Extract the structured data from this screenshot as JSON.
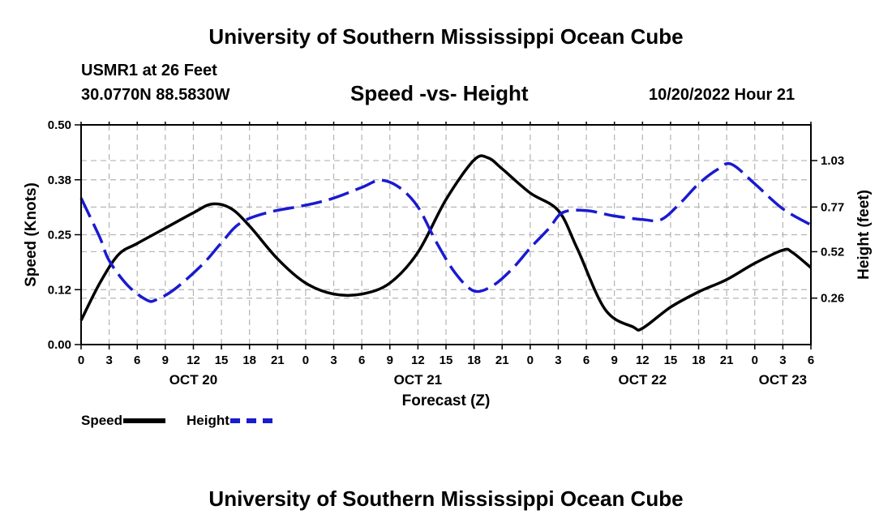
{
  "page": {
    "title_top": "University of Southern Mississippi Ocean Cube",
    "title_bottom": "University of Southern Mississippi Ocean Cube",
    "station_name": "USMR1 at 26 Feet",
    "station_coords": "30.0770N  88.5830W",
    "subtitle": "Speed -vs- Height",
    "run_time": "10/20/2022 Hour 21"
  },
  "legend": {
    "speed_label": "Speed",
    "height_label": "Height"
  },
  "colors": {
    "speed": "#000000",
    "height": "#1a1ad0",
    "grid": "#b4b4b4"
  },
  "chart_data": {
    "type": "line",
    "title": "Speed -vs- Height",
    "xlabel": "Forecast (Z)",
    "ylabel": "Speed (Knots)",
    "y2label": "Height (feet)",
    "x_range_hours": [
      0,
      78
    ],
    "ylim": [
      0,
      0.5
    ],
    "y2lim": [
      0,
      1.23
    ],
    "grid": true,
    "y_ticks": [
      {
        "value": 0.0,
        "label": "0.00"
      },
      {
        "value": 0.125,
        "label": "0.12"
      },
      {
        "value": 0.25,
        "label": "0.25"
      },
      {
        "value": 0.375,
        "label": "0.38"
      },
      {
        "value": 0.5,
        "label": "0.50"
      }
    ],
    "y2_ticks": [
      {
        "value": 0.26,
        "label": "0.26"
      },
      {
        "value": 0.52,
        "label": "0.52"
      },
      {
        "value": 0.77,
        "label": "0.77"
      },
      {
        "value": 1.03,
        "label": "1.03"
      }
    ],
    "x_ticks": [
      {
        "hour": 0,
        "label": "0"
      },
      {
        "hour": 3,
        "label": "3"
      },
      {
        "hour": 6,
        "label": "6"
      },
      {
        "hour": 9,
        "label": "9"
      },
      {
        "hour": 12,
        "label": "12"
      },
      {
        "hour": 15,
        "label": "15"
      },
      {
        "hour": 18,
        "label": "18"
      },
      {
        "hour": 21,
        "label": "21"
      },
      {
        "hour": 24,
        "label": "0"
      },
      {
        "hour": 27,
        "label": "3"
      },
      {
        "hour": 30,
        "label": "6"
      },
      {
        "hour": 33,
        "label": "9"
      },
      {
        "hour": 36,
        "label": "12"
      },
      {
        "hour": 39,
        "label": "15"
      },
      {
        "hour": 42,
        "label": "18"
      },
      {
        "hour": 45,
        "label": "21"
      },
      {
        "hour": 48,
        "label": "0"
      },
      {
        "hour": 51,
        "label": "3"
      },
      {
        "hour": 54,
        "label": "6"
      },
      {
        "hour": 57,
        "label": "9"
      },
      {
        "hour": 60,
        "label": "12"
      },
      {
        "hour": 63,
        "label": "15"
      },
      {
        "hour": 66,
        "label": "18"
      },
      {
        "hour": 69,
        "label": "21"
      },
      {
        "hour": 72,
        "label": "0"
      },
      {
        "hour": 75,
        "label": "3"
      },
      {
        "hour": 78,
        "label": "6"
      }
    ],
    "date_labels": [
      {
        "hour": 12,
        "label": "OCT 20"
      },
      {
        "hour": 36,
        "label": "OCT 21"
      },
      {
        "hour": 60,
        "label": "OCT 22"
      },
      {
        "hour": 75,
        "label": "OCT 23"
      }
    ],
    "series": [
      {
        "name": "Speed",
        "axis": "left",
        "style": "solid",
        "points": [
          [
            0,
            0.055
          ],
          [
            2,
            0.14
          ],
          [
            4,
            0.205
          ],
          [
            6,
            0.23
          ],
          [
            9,
            0.265
          ],
          [
            12,
            0.3
          ],
          [
            14,
            0.32
          ],
          [
            16,
            0.31
          ],
          [
            18,
            0.27
          ],
          [
            21,
            0.195
          ],
          [
            24,
            0.14
          ],
          [
            27,
            0.115
          ],
          [
            30,
            0.115
          ],
          [
            33,
            0.14
          ],
          [
            36,
            0.21
          ],
          [
            39,
            0.33
          ],
          [
            42,
            0.42
          ],
          [
            43.5,
            0.425
          ],
          [
            45,
            0.4
          ],
          [
            48,
            0.345
          ],
          [
            51,
            0.305
          ],
          [
            53,
            0.22
          ],
          [
            56,
            0.08
          ],
          [
            59,
            0.04
          ],
          [
            60,
            0.037
          ],
          [
            63,
            0.085
          ],
          [
            66,
            0.12
          ],
          [
            69,
            0.148
          ],
          [
            72,
            0.185
          ],
          [
            75,
            0.215
          ],
          [
            76,
            0.21
          ],
          [
            78,
            0.175
          ]
        ]
      },
      {
        "name": "Height",
        "axis": "right",
        "style": "dashed",
        "points": [
          [
            0,
            0.82
          ],
          [
            2,
            0.6
          ],
          [
            3,
            0.47
          ],
          [
            5,
            0.33
          ],
          [
            7,
            0.25
          ],
          [
            8,
            0.25
          ],
          [
            10,
            0.31
          ],
          [
            13,
            0.45
          ],
          [
            15,
            0.57
          ],
          [
            17,
            0.68
          ],
          [
            20,
            0.74
          ],
          [
            24,
            0.78
          ],
          [
            27,
            0.82
          ],
          [
            30,
            0.88
          ],
          [
            32,
            0.92
          ],
          [
            34,
            0.88
          ],
          [
            36,
            0.77
          ],
          [
            38,
            0.57
          ],
          [
            40,
            0.4
          ],
          [
            42,
            0.3
          ],
          [
            44,
            0.33
          ],
          [
            46,
            0.42
          ],
          [
            48,
            0.54
          ],
          [
            50,
            0.65
          ],
          [
            51.5,
            0.74
          ],
          [
            54,
            0.75
          ],
          [
            57,
            0.72
          ],
          [
            60,
            0.7
          ],
          [
            62,
            0.7
          ],
          [
            64,
            0.79
          ],
          [
            66,
            0.9
          ],
          [
            68,
            0.98
          ],
          [
            69.5,
            1.01
          ],
          [
            72,
            0.9
          ],
          [
            75,
            0.76
          ],
          [
            78,
            0.67
          ]
        ]
      }
    ]
  }
}
